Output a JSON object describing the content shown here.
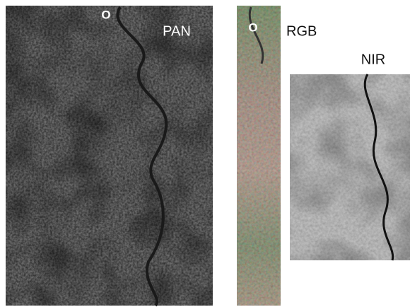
{
  "panels": [
    {
      "label": "PAN",
      "marker": "O"
    },
    {
      "label": "RGB",
      "marker": "O"
    },
    {
      "label": "NIR"
    }
  ]
}
